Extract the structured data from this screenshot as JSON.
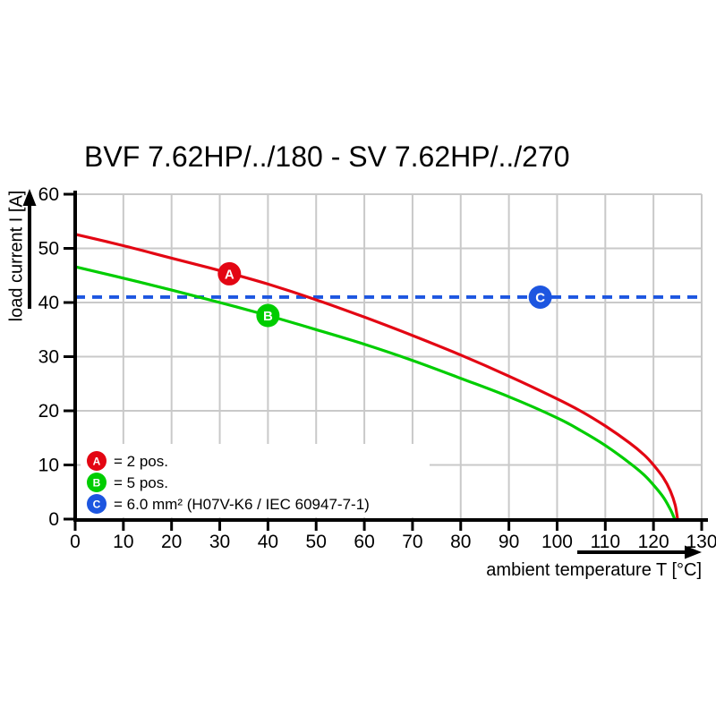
{
  "title": "BVF 7.62HP/../180 - SV 7.62HP/../270",
  "colors": {
    "red": "#e30613",
    "green": "#00cd00",
    "blue": "#1d56e0",
    "grid": "#c9c9c9",
    "axis": "#000000",
    "background": "#ffffff",
    "marker_letter": "#ffffff"
  },
  "chart_data": {
    "type": "line",
    "title": "BVF 7.62HP/../180 - SV 7.62HP/../270",
    "xlabel": "ambient temperature T [°C]",
    "ylabel": "load current I [A]",
    "xlim": [
      0,
      130
    ],
    "ylim": [
      0,
      60
    ],
    "xticks": [
      "0",
      "10",
      "20",
      "30",
      "40",
      "50",
      "60",
      "70",
      "80",
      "90",
      "100",
      "110",
      "120",
      "130"
    ],
    "yticks": [
      "0",
      "10",
      "20",
      "30",
      "40",
      "50",
      "60"
    ],
    "grid": true,
    "legend_position": "bottom-left-inside",
    "series": [
      {
        "name": "curve-2pos",
        "legend_label": "= 2 pos.",
        "color": "#e30613",
        "style": "solid",
        "marker": {
          "letter": "A",
          "x": 32,
          "y": 45.3
        },
        "points": [
          [
            0,
            52.6
          ],
          [
            10,
            50.5
          ],
          [
            20,
            48.2
          ],
          [
            30,
            45.9
          ],
          [
            40,
            43.4
          ],
          [
            50,
            40.5
          ],
          [
            60,
            37.3
          ],
          [
            70,
            33.9
          ],
          [
            80,
            30.3
          ],
          [
            90,
            26.4
          ],
          [
            100,
            22.2
          ],
          [
            105,
            19.9
          ],
          [
            110,
            17.2
          ],
          [
            115,
            14.1
          ],
          [
            118,
            11.9
          ],
          [
            120,
            10.0
          ],
          [
            122,
            7.7
          ],
          [
            123.5,
            5.2
          ],
          [
            124.5,
            2.6
          ],
          [
            125,
            0
          ]
        ]
      },
      {
        "name": "curve-5pos",
        "legend_label": "= 5 pos.",
        "color": "#00cd00",
        "style": "solid",
        "marker": {
          "letter": "B",
          "x": 40,
          "y": 37.6
        },
        "points": [
          [
            0,
            46.6
          ],
          [
            10,
            44.5
          ],
          [
            20,
            42.3
          ],
          [
            30,
            40.0
          ],
          [
            40,
            37.6
          ],
          [
            50,
            35.0
          ],
          [
            60,
            32.3
          ],
          [
            70,
            29.3
          ],
          [
            80,
            26.0
          ],
          [
            90,
            22.6
          ],
          [
            100,
            18.7
          ],
          [
            105,
            16.3
          ],
          [
            110,
            13.6
          ],
          [
            115,
            10.4
          ],
          [
            118,
            8.2
          ],
          [
            120,
            6.3
          ],
          [
            122,
            4.1
          ],
          [
            123.5,
            1.8
          ],
          [
            124.4,
            0
          ]
        ]
      },
      {
        "name": "limit-6mm2",
        "legend_label": "= 6.0 mm² (H07V-K6 / IEC 60947-7-1)",
        "color": "#1d56e0",
        "style": "dashed",
        "marker": {
          "letter": "C",
          "x": 96.5,
          "y": 41
        },
        "points": [
          [
            0,
            41
          ],
          [
            130,
            41
          ]
        ]
      }
    ]
  }
}
